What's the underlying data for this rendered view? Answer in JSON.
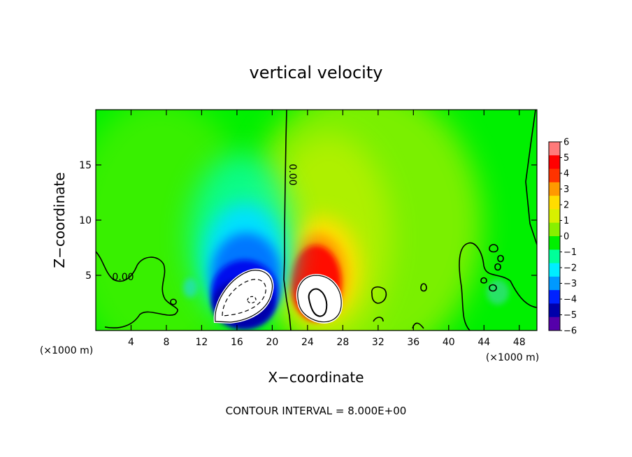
{
  "chart_data": {
    "type": "heatmap",
    "title": "vertical velocity",
    "xlabel": "X−coordinate",
    "ylabel": "Z−coordinate",
    "x_unit_left": "(×1000 m)",
    "x_unit_right": "(×1000 m)",
    "footer": "CONTOUR INTERVAL = 8.000E+00",
    "xlim": [
      0,
      50
    ],
    "ylim": [
      0,
      20
    ],
    "x_ticks": [
      4,
      8,
      12,
      16,
      20,
      24,
      28,
      32,
      36,
      40,
      44,
      48
    ],
    "y_ticks": [
      5,
      10,
      15
    ],
    "colorbar": {
      "levels": [
        6,
        5,
        4,
        3,
        2,
        1,
        0,
        -1,
        -2,
        -3,
        -4,
        -5,
        -6
      ],
      "labels": [
        "6",
        "5",
        "4",
        "3",
        "2",
        "1",
        "0",
        "−1",
        "−2",
        "−3",
        "−4",
        "−5",
        "−6"
      ],
      "colors": [
        "#ff7a7a",
        "#ff0000",
        "#ff3300",
        "#ff9900",
        "#ffdd00",
        "#d8f000",
        "#88f000",
        "#00f000",
        "#00ff99",
        "#00eeff",
        "#0099ff",
        "#0022ff",
        "#0000aa",
        "#5500aa"
      ]
    },
    "contour_labels": [
      {
        "text": "0.00",
        "x": 21.6,
        "z": 13.8,
        "rotate": 90
      },
      {
        "text": "0.00",
        "x": 3,
        "z": 4.7,
        "rotate": 0
      }
    ],
    "features": [
      {
        "name": "downdraft",
        "x": 17.5,
        "z": 3,
        "sign": "negative"
      },
      {
        "name": "updraft",
        "x": 25.5,
        "z": 3,
        "sign": "positive"
      }
    ]
  }
}
